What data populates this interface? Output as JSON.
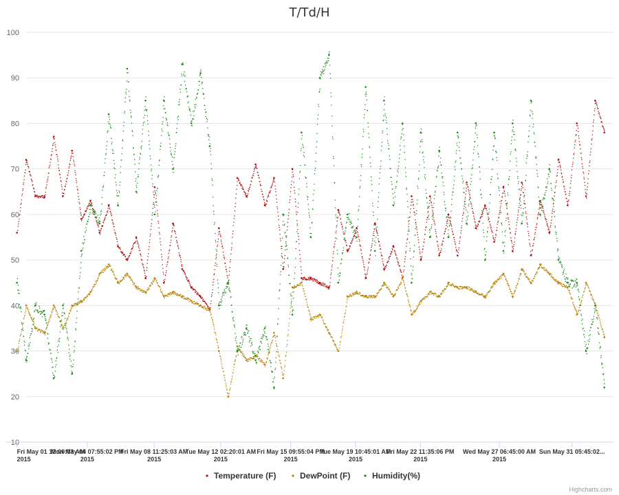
{
  "chart_data": {
    "type": "scatter",
    "title": "T/Td/H",
    "xlabel": "",
    "ylabel": "",
    "ylim": [
      10,
      100
    ],
    "yticks": [
      "10",
      "20",
      "30",
      "40",
      "50",
      "60",
      "70",
      "80",
      "90",
      "100"
    ],
    "grid": true,
    "legend_position": "bottom-center",
    "x_range": [
      "2015-05-01 12:00",
      "2015-06-02 12:00"
    ],
    "xticks": [
      {
        "line1": "Fri May 01 12:00:03 AM",
        "line2": "2015",
        "date": "2015-05-01 00:00"
      },
      {
        "line1": "Mon May 04 07:55:02 PM",
        "line2": "2015",
        "date": "2015-05-04 19:55"
      },
      {
        "line1": "Fri May 08 11:25:03 AM",
        "line2": "2015",
        "date": "2015-05-08 11:25"
      },
      {
        "line1": "Tue May 12 02:20:01 AM",
        "line2": "2015",
        "date": "2015-05-12 02:20"
      },
      {
        "line1": "Fri May 15 09:55:04 PM",
        "line2": "2015",
        "date": "2015-05-15 21:55"
      },
      {
        "line1": "Tue May 19 10:45:01 AM",
        "line2": "2015",
        "date": "2015-05-19 10:45"
      },
      {
        "line1": "Fri May 22 11:35:06 PM",
        "line2": "2015",
        "date": "2015-05-22 23:35"
      },
      {
        "line1": "Wed May 27 06:45:00 AM",
        "line2": "2015",
        "date": "2015-05-27 06:45"
      },
      {
        "line1": "Sun May 31 05:45:02...",
        "line2": "",
        "date": "2015-05-31 05:45"
      }
    ],
    "series": [
      {
        "name": "Temperature (F)",
        "color": "#b01010",
        "x": [
          "2015-05-01 00:00",
          "2015-05-01 12:00",
          "2015-05-02 00:00",
          "2015-05-02 12:00",
          "2015-05-03 00:00",
          "2015-05-03 12:00",
          "2015-05-04 00:00",
          "2015-05-04 12:00",
          "2015-05-05 00:00",
          "2015-05-05 12:00",
          "2015-05-06 00:00",
          "2015-05-06 12:00",
          "2015-05-07 00:00",
          "2015-05-07 12:00",
          "2015-05-08 00:00",
          "2015-05-08 12:00",
          "2015-05-09 00:00",
          "2015-05-09 12:00",
          "2015-05-10 00:00",
          "2015-05-10 12:00",
          "2015-05-11 00:00",
          "2015-05-11 12:00",
          "2015-05-12 00:00",
          "2015-05-12 12:00",
          "2015-05-13 00:00",
          "2015-05-13 12:00",
          "2015-05-14 00:00",
          "2015-05-14 12:00",
          "2015-05-15 00:00",
          "2015-05-15 12:00",
          "2015-05-16 00:00",
          "2015-05-16 12:00",
          "2015-05-17 00:00",
          "2015-05-17 12:00",
          "2015-05-18 00:00",
          "2015-05-18 12:00",
          "2015-05-19 00:00",
          "2015-05-19 12:00",
          "2015-05-20 00:00",
          "2015-05-20 12:00",
          "2015-05-21 00:00",
          "2015-05-21 12:00",
          "2015-05-22 00:00",
          "2015-05-22 12:00",
          "2015-05-23 00:00",
          "2015-05-23 12:00",
          "2015-05-24 00:00",
          "2015-05-24 12:00",
          "2015-05-25 00:00",
          "2015-05-25 12:00",
          "2015-05-26 00:00",
          "2015-05-26 12:00",
          "2015-05-27 00:00",
          "2015-05-27 12:00",
          "2015-05-28 00:00",
          "2015-05-28 12:00",
          "2015-05-29 00:00",
          "2015-05-29 12:00",
          "2015-05-30 00:00",
          "2015-05-30 12:00",
          "2015-05-31 00:00",
          "2015-05-31 12:00",
          "2015-06-01 00:00",
          "2015-06-01 12:00",
          "2015-06-02 00:00"
        ],
        "y": [
          56,
          72,
          64,
          64,
          77,
          64,
          74,
          59,
          63,
          56,
          62,
          53,
          50,
          55,
          46,
          66,
          45,
          58,
          48,
          44,
          42,
          39,
          57,
          45,
          68,
          64,
          71,
          62,
          68,
          48,
          70,
          46,
          46,
          45,
          44,
          61,
          52,
          57,
          46,
          58,
          48,
          53,
          46,
          64,
          50,
          64,
          51,
          60,
          51,
          67,
          57,
          62,
          54,
          66,
          52,
          67,
          51,
          63,
          56,
          72,
          62,
          80,
          64,
          85,
          78
        ]
      },
      {
        "name": "DewPoint (F)",
        "color": "#b8860b",
        "x": [
          "2015-05-01 00:00",
          "2015-05-01 12:00",
          "2015-05-02 00:00",
          "2015-05-02 12:00",
          "2015-05-03 00:00",
          "2015-05-03 12:00",
          "2015-05-04 00:00",
          "2015-05-04 12:00",
          "2015-05-05 00:00",
          "2015-05-05 12:00",
          "2015-05-06 00:00",
          "2015-05-06 12:00",
          "2015-05-07 00:00",
          "2015-05-07 12:00",
          "2015-05-08 00:00",
          "2015-05-08 12:00",
          "2015-05-09 00:00",
          "2015-05-09 12:00",
          "2015-05-10 00:00",
          "2015-05-10 12:00",
          "2015-05-11 00:00",
          "2015-05-11 12:00",
          "2015-05-12 00:00",
          "2015-05-12 12:00",
          "2015-05-13 00:00",
          "2015-05-13 12:00",
          "2015-05-14 00:00",
          "2015-05-14 12:00",
          "2015-05-15 00:00",
          "2015-05-15 12:00",
          "2015-05-16 00:00",
          "2015-05-16 12:00",
          "2015-05-17 00:00",
          "2015-05-17 12:00",
          "2015-05-18 00:00",
          "2015-05-18 12:00",
          "2015-05-19 00:00",
          "2015-05-19 12:00",
          "2015-05-20 00:00",
          "2015-05-20 12:00",
          "2015-05-21 00:00",
          "2015-05-21 12:00",
          "2015-05-22 00:00",
          "2015-05-22 12:00",
          "2015-05-23 00:00",
          "2015-05-23 12:00",
          "2015-05-24 00:00",
          "2015-05-24 12:00",
          "2015-05-25 00:00",
          "2015-05-25 12:00",
          "2015-05-26 00:00",
          "2015-05-26 12:00",
          "2015-05-27 00:00",
          "2015-05-27 12:00",
          "2015-05-28 00:00",
          "2015-05-28 12:00",
          "2015-05-29 00:00",
          "2015-05-29 12:00",
          "2015-05-30 00:00",
          "2015-05-30 12:00",
          "2015-05-31 00:00",
          "2015-05-31 12:00",
          "2015-06-01 00:00",
          "2015-06-01 12:00",
          "2015-06-02 00:00"
        ],
        "y": [
          30,
          40,
          35,
          34,
          40,
          35,
          40,
          41,
          43,
          47,
          49,
          45,
          47,
          44,
          43,
          46,
          42,
          43,
          42,
          41,
          40,
          39,
          30,
          20,
          31,
          28,
          29,
          27,
          34,
          24,
          44,
          45,
          37,
          38,
          34,
          30,
          42,
          43,
          42,
          42,
          45,
          42,
          46,
          38,
          41,
          43,
          42,
          45,
          44,
          44,
          43,
          42,
          45,
          47,
          42,
          48,
          45,
          49,
          47,
          45,
          44,
          38,
          45,
          40,
          33
        ]
      },
      {
        "name": "Humidity(%)",
        "color": "#1a8a1a",
        "x": [
          "2015-05-01 00:00",
          "2015-05-01 12:00",
          "2015-05-02 00:00",
          "2015-05-02 12:00",
          "2015-05-03 00:00",
          "2015-05-03 12:00",
          "2015-05-04 00:00",
          "2015-05-04 12:00",
          "2015-05-05 00:00",
          "2015-05-05 12:00",
          "2015-05-06 00:00",
          "2015-05-06 12:00",
          "2015-05-07 00:00",
          "2015-05-07 12:00",
          "2015-05-08 00:00",
          "2015-05-08 12:00",
          "2015-05-09 00:00",
          "2015-05-09 12:00",
          "2015-05-10 00:00",
          "2015-05-10 12:00",
          "2015-05-11 00:00",
          "2015-05-11 12:00",
          "2015-05-12 00:00",
          "2015-05-12 12:00",
          "2015-05-13 00:00",
          "2015-05-13 12:00",
          "2015-05-14 00:00",
          "2015-05-14 12:00",
          "2015-05-15 00:00",
          "2015-05-15 12:00",
          "2015-05-16 00:00",
          "2015-05-16 12:00",
          "2015-05-17 00:00",
          "2015-05-17 12:00",
          "2015-05-18 00:00",
          "2015-05-18 12:00",
          "2015-05-19 00:00",
          "2015-05-19 12:00",
          "2015-05-20 00:00",
          "2015-05-20 12:00",
          "2015-05-21 00:00",
          "2015-05-21 12:00",
          "2015-05-22 00:00",
          "2015-05-22 12:00",
          "2015-05-23 00:00",
          "2015-05-23 12:00",
          "2015-05-24 00:00",
          "2015-05-24 12:00",
          "2015-05-25 00:00",
          "2015-05-25 12:00",
          "2015-05-26 00:00",
          "2015-05-26 12:00",
          "2015-05-27 00:00",
          "2015-05-27 12:00",
          "2015-05-28 00:00",
          "2015-05-28 12:00",
          "2015-05-29 00:00",
          "2015-05-29 12:00",
          "2015-05-30 00:00",
          "2015-05-30 12:00",
          "2015-05-31 00:00",
          "2015-05-31 12:00",
          "2015-06-01 00:00",
          "2015-06-01 12:00",
          "2015-06-02 00:00"
        ],
        "y": [
          45,
          28,
          40,
          38,
          24,
          40,
          25,
          52,
          62,
          58,
          82,
          62,
          92,
          65,
          85,
          60,
          85,
          70,
          93,
          80,
          91,
          75,
          40,
          45,
          30,
          35,
          28,
          35,
          22,
          60,
          38,
          78,
          55,
          90,
          95,
          45,
          60,
          55,
          88,
          52,
          85,
          62,
          80,
          45,
          78,
          55,
          74,
          55,
          78,
          58,
          80,
          50,
          78,
          52,
          80,
          58,
          85,
          60,
          70,
          50,
          45,
          45,
          30,
          40,
          22
        ]
      }
    ]
  },
  "legend": [
    {
      "label": "Temperature (F)",
      "color": "#b01010"
    },
    {
      "label": "DewPoint (F)",
      "color": "#b8860b"
    },
    {
      "label": "Humidity(%)",
      "color": "#1a8a1a"
    }
  ],
  "credits": "Highcharts.com"
}
